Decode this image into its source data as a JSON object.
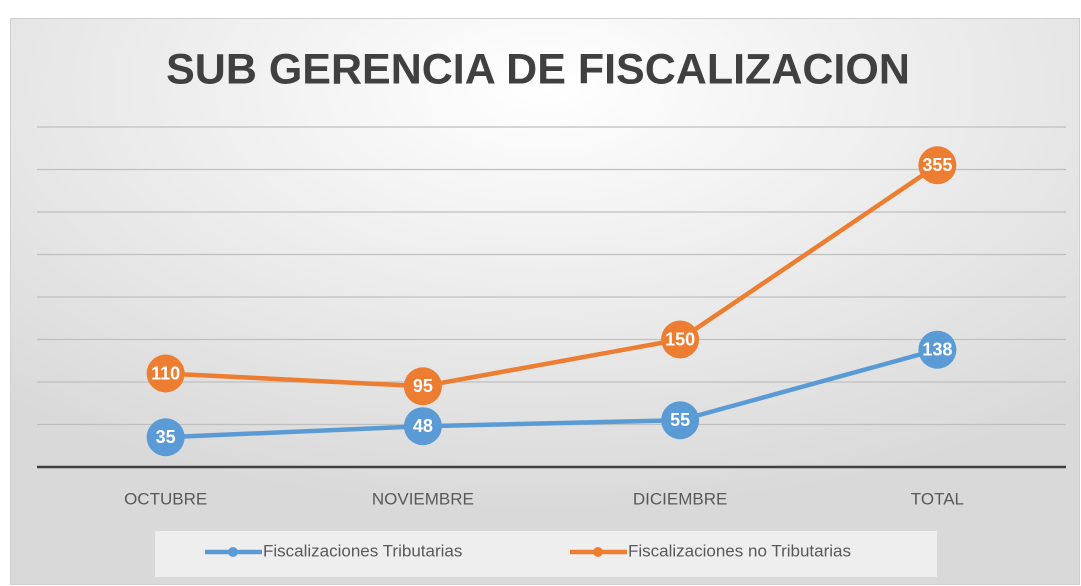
{
  "chart_data": {
    "type": "line",
    "title": "SUB GERENCIA DE FISCALIZACION",
    "categories": [
      "OCTUBRE",
      "NOVIEMBRE",
      "DICIEMBRE",
      "TOTAL"
    ],
    "series": [
      {
        "name": "Fiscalizaciones Tributarias",
        "color": "#5b9bd5",
        "values": [
          35,
          48,
          55,
          138
        ]
      },
      {
        "name": "Fiscalizaciones no Tributarias",
        "color": "#ed7d31",
        "values": [
          110,
          95,
          150,
          355
        ]
      }
    ],
    "ylim": [
      0,
      400
    ],
    "yticks": [
      0,
      50,
      100,
      150,
      200,
      250,
      300,
      350,
      400
    ],
    "grid": true
  }
}
